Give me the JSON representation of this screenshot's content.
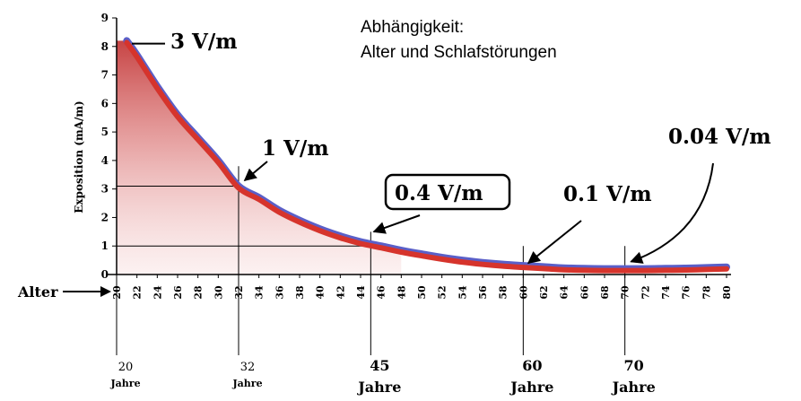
{
  "chart_data": {
    "type": "area",
    "title_lines": [
      "Abhängigkeit:",
      "Alter und Schlafstörungen"
    ],
    "ylabel": "Exposition (mA/m)",
    "xlabel": "Alter",
    "ylim": [
      0,
      9
    ],
    "xlim": [
      20,
      80
    ],
    "y_ticks": [
      0,
      1,
      2,
      3,
      4,
      5,
      6,
      7,
      8,
      9
    ],
    "x_ticks": [
      20,
      22,
      24,
      26,
      28,
      30,
      32,
      34,
      36,
      38,
      40,
      42,
      44,
      46,
      48,
      50,
      52,
      54,
      56,
      58,
      60,
      62,
      64,
      66,
      68,
      70,
      72,
      74,
      76,
      78,
      80
    ],
    "series": [
      {
        "x": [
          21,
          22,
          24,
          26,
          28,
          30,
          32,
          34,
          36,
          38,
          40,
          42,
          44,
          46,
          48,
          50,
          52,
          54,
          56,
          58,
          60,
          62,
          64,
          66,
          68,
          70,
          72,
          74,
          76,
          78,
          80
        ],
        "y": [
          8.2,
          7.7,
          6.6,
          5.6,
          4.8,
          4.0,
          3.1,
          2.7,
          2.25,
          1.9,
          1.6,
          1.35,
          1.15,
          1.0,
          0.85,
          0.72,
          0.6,
          0.5,
          0.42,
          0.36,
          0.31,
          0.27,
          0.23,
          0.21,
          0.2,
          0.2,
          0.2,
          0.21,
          0.22,
          0.24,
          0.26
        ]
      }
    ],
    "guides": [
      {
        "x": 32,
        "y": 3.1
      },
      {
        "x": 45,
        "y": 1.0
      }
    ],
    "annotations": [
      {
        "text": "3 V/m",
        "x": 21,
        "y": 8.2
      },
      {
        "text": "1 V/m",
        "x": 32,
        "y": 3.1
      },
      {
        "text": "0.4 V/m",
        "x": 45,
        "y": 1.5,
        "boxed": true
      },
      {
        "text": "0.1 V/m",
        "x": 60,
        "y": 0.35
      },
      {
        "text": "0.04 V/m",
        "x": 70,
        "y": 0.3
      }
    ],
    "age_markers": [
      {
        "x": 20,
        "value": "20",
        "unit": "Jahre"
      },
      {
        "x": 32,
        "value": "32",
        "unit": "Jahre"
      },
      {
        "x": 45,
        "value": "45",
        "unit": "Jahre"
      },
      {
        "x": 60,
        "value": "60",
        "unit": "Jahre"
      },
      {
        "x": 70,
        "value": "70",
        "unit": "Jahre"
      }
    ],
    "colors": {
      "curve": "#d6342c",
      "curve_edge": "#5a5fc8",
      "fill": "#c43a3a",
      "axis": "#000000"
    }
  }
}
